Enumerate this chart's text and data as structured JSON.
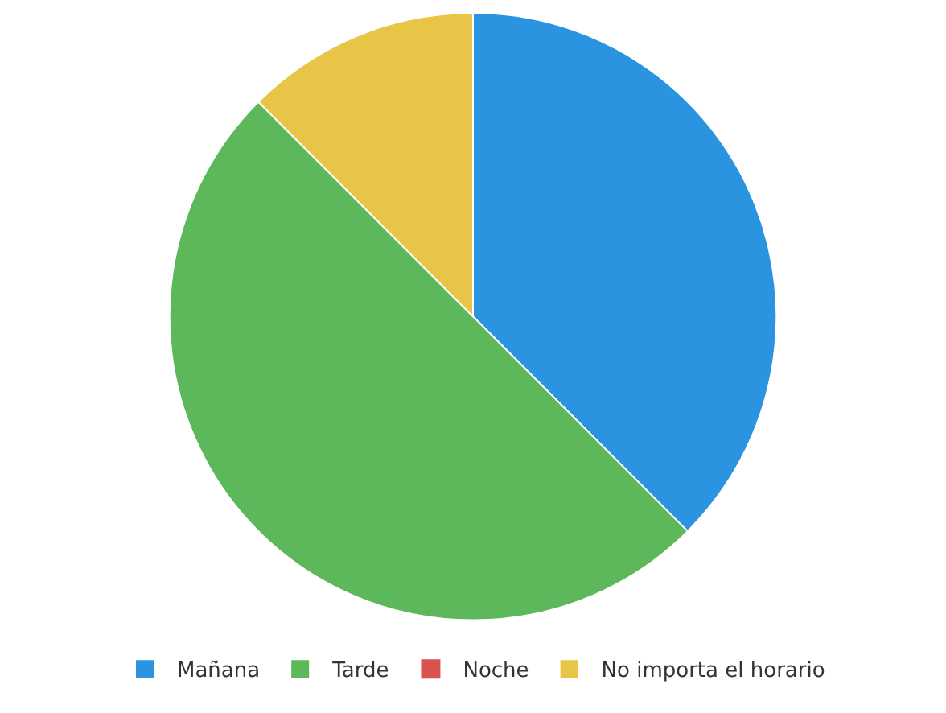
{
  "chart_data": {
    "type": "pie",
    "categories": [
      "Mañana",
      "Tarde",
      "Noche",
      "No importa el horario"
    ],
    "values": [
      37.5,
      50,
      0,
      12.5
    ],
    "colors": [
      "#2b94e1",
      "#5cb85a",
      "#d9534f",
      "#e8c547"
    ],
    "legend": "bottom"
  }
}
